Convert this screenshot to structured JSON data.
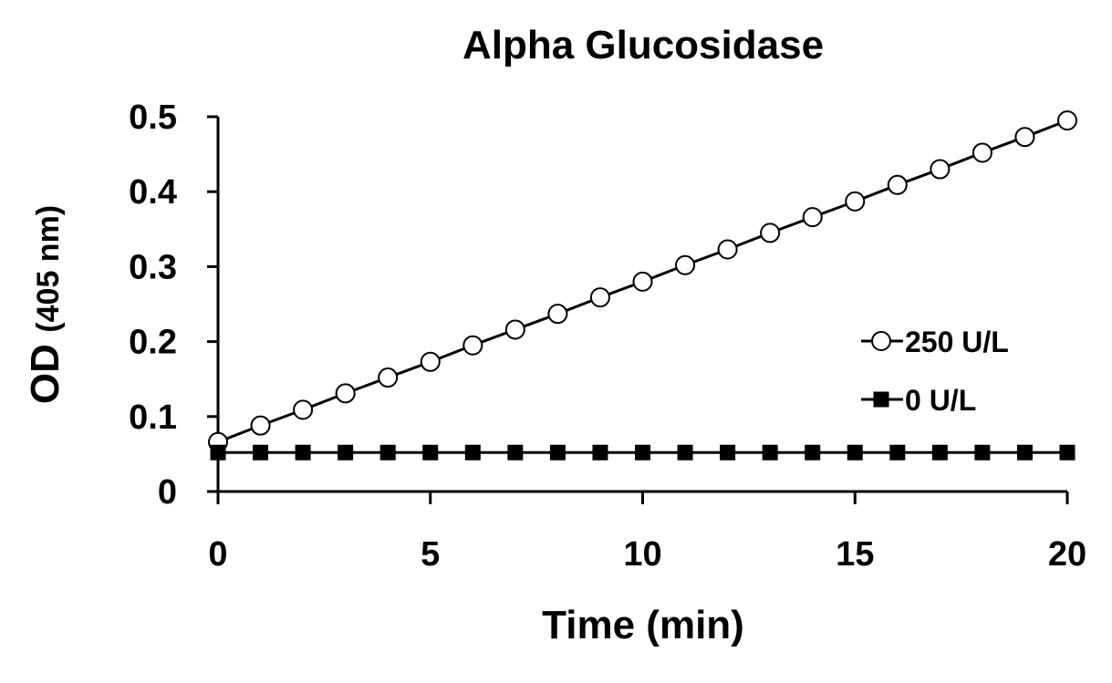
{
  "chart_data": {
    "type": "line",
    "title": "Alpha Glucosidase",
    "xlabel": "Time (min)",
    "ylabel": "OD",
    "ylabel_unit": "(405 nm)",
    "xlim": [
      0,
      20
    ],
    "ylim": [
      0,
      0.5
    ],
    "x_ticks": [
      0,
      5,
      10,
      15,
      20
    ],
    "x_tick_labels": [
      "0",
      "5",
      "10",
      "15",
      "20"
    ],
    "y_ticks": [
      0,
      0.1,
      0.2,
      0.3,
      0.4,
      0.5
    ],
    "y_tick_labels": [
      "0",
      "0.1",
      "0.2",
      "0.3",
      "0.4",
      "0.5"
    ],
    "grid": false,
    "legend_position": "right",
    "x": [
      0,
      1,
      2,
      3,
      4,
      5,
      6,
      7,
      8,
      9,
      10,
      11,
      12,
      13,
      14,
      15,
      16,
      17,
      18,
      19,
      20
    ],
    "series": [
      {
        "name": "250 U/L",
        "marker": "open-circle",
        "color": "#000000",
        "values": [
          0.066,
          0.088,
          0.109,
          0.131,
          0.152,
          0.173,
          0.195,
          0.216,
          0.237,
          0.259,
          0.28,
          0.302,
          0.323,
          0.345,
          0.366,
          0.387,
          0.409,
          0.43,
          0.452,
          0.473,
          0.495
        ]
      },
      {
        "name": "0 U/L",
        "marker": "filled-square",
        "color": "#000000",
        "values": [
          0.052,
          0.052,
          0.052,
          0.052,
          0.052,
          0.052,
          0.052,
          0.052,
          0.052,
          0.052,
          0.052,
          0.052,
          0.052,
          0.052,
          0.052,
          0.052,
          0.052,
          0.052,
          0.052,
          0.052,
          0.052
        ]
      }
    ]
  }
}
